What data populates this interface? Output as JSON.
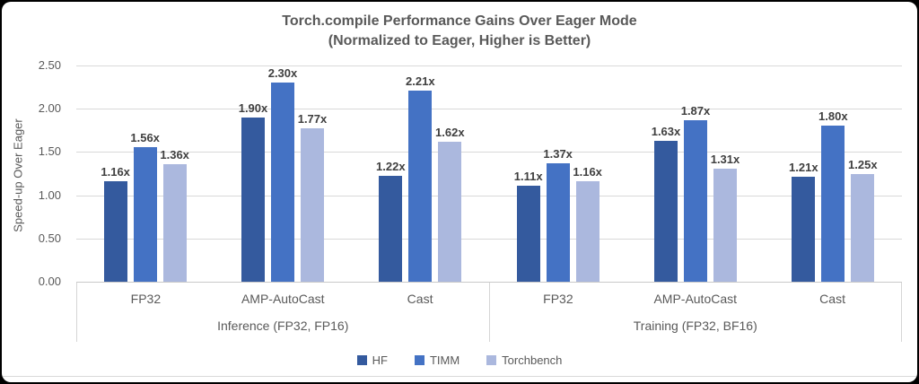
{
  "chart_data": {
    "type": "bar",
    "title": "Torch.compile Performance Gains Over Eager Mode",
    "subtitle": "(Normalized to Eager, Higher is Better)",
    "ylabel": "Speed-up Over Eager",
    "ylim": [
      0,
      2.5
    ],
    "ytick_step": 0.5,
    "yticks": [
      "2.50",
      "2.00",
      "1.50",
      "1.00",
      "0.50",
      "0.00"
    ],
    "grid": true,
    "legend_position": "bottom",
    "series": [
      {
        "name": "HF",
        "color": "#345a9e"
      },
      {
        "name": "TIMM",
        "color": "#4472c4"
      },
      {
        "name": "Torchbench",
        "color": "#abb8de"
      }
    ],
    "groups": [
      {
        "label": "Inference (FP32, FP16)",
        "categories": [
          {
            "label": "FP32",
            "values": [
              1.16,
              1.56,
              1.36
            ],
            "labels": [
              "1.16x",
              "1.56x",
              "1.36x"
            ]
          },
          {
            "label": "AMP-AutoCast",
            "values": [
              1.9,
              2.3,
              1.77
            ],
            "labels": [
              "1.90x",
              "2.30x",
              "1.77x"
            ]
          },
          {
            "label": "Cast",
            "values": [
              1.22,
              2.21,
              1.62
            ],
            "labels": [
              "1.22x",
              "2.21x",
              "1.62x"
            ]
          }
        ]
      },
      {
        "label": "Training (FP32, BF16)",
        "categories": [
          {
            "label": "FP32",
            "values": [
              1.11,
              1.37,
              1.16
            ],
            "labels": [
              "1.11x",
              "1.37x",
              "1.16x"
            ]
          },
          {
            "label": "AMP-AutoCast",
            "values": [
              1.63,
              1.87,
              1.31
            ],
            "labels": [
              "1.63x",
              "1.87x",
              "1.31x"
            ]
          },
          {
            "label": "Cast",
            "values": [
              1.21,
              1.8,
              1.25
            ],
            "labels": [
              "1.21x",
              "1.80x",
              "1.25x"
            ]
          }
        ]
      }
    ]
  }
}
